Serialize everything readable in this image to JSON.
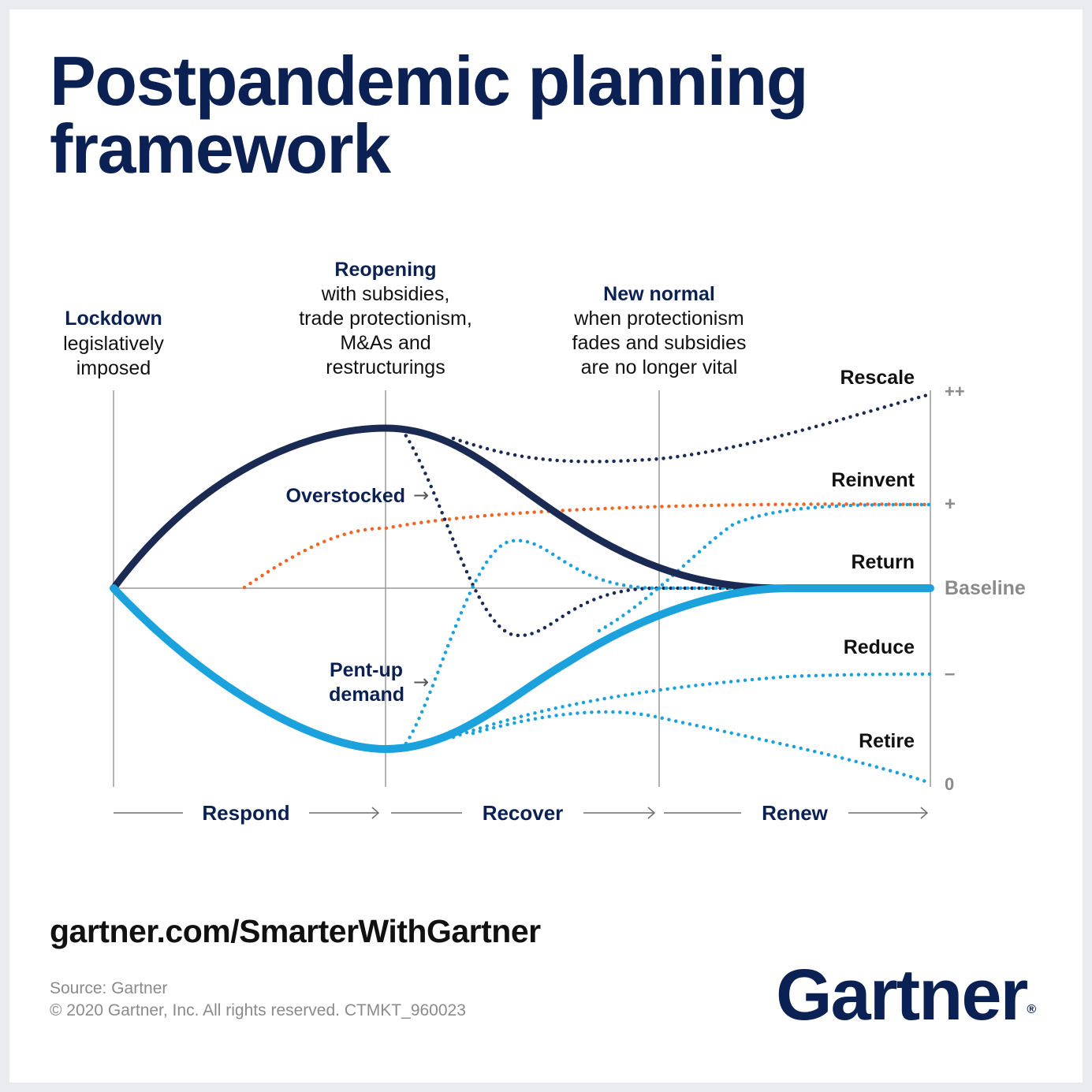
{
  "title": {
    "line1": "Postpandemic planning",
    "line2": "framework"
  },
  "phases": [
    {
      "heading": "Lockdown",
      "lines": [
        "legislatively",
        "imposed"
      ]
    },
    {
      "heading": "Reopening",
      "lines": [
        "with subsidies,",
        "trade protectionism,",
        "M&As and",
        "restructurings"
      ]
    },
    {
      "heading": "New normal",
      "lines": [
        "when protectionism",
        "fades and subsidies",
        "are no longer vital"
      ]
    }
  ],
  "scenarios": {
    "rescale": "Rescale",
    "reinvent": "Reinvent",
    "return": "Return",
    "reduce": "Reduce",
    "retire": "Retire"
  },
  "levels": {
    "plus_plus": "++",
    "plus": "+",
    "baseline": "Baseline",
    "minus": "–",
    "zero": "0"
  },
  "annotations": {
    "overstocked": "Overstocked",
    "pentup_line1": "Pent-up",
    "pentup_line2": "demand",
    "arrow": "→"
  },
  "stages": [
    "Respond",
    "Recover",
    "Renew"
  ],
  "url": "gartner.com/SmarterWithGartner",
  "source": {
    "line1": "Source: Gartner",
    "line2": "© 2020 Gartner, Inc. All rights reserved. CTMKT_960023"
  },
  "logo": {
    "text": "Gartner",
    "mark": "®"
  },
  "colors": {
    "navy": "#0b2153",
    "dark_curve": "#1b2a52",
    "blue": "#1ba1db",
    "orange": "#f26522",
    "gray": "#8a8a8a",
    "text": "#111111"
  }
}
